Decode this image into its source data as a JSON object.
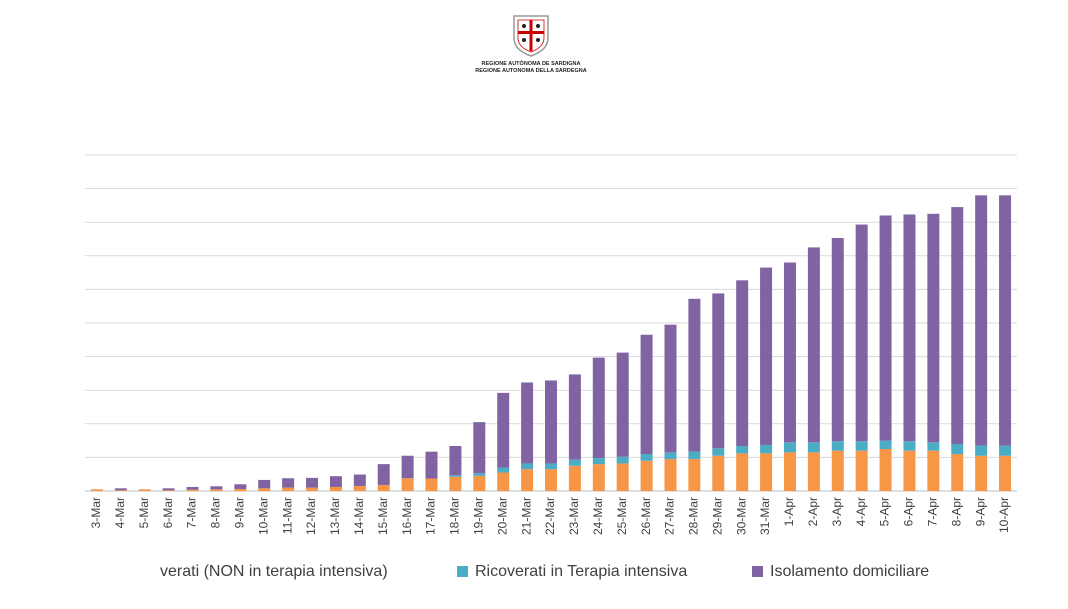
{
  "header": {
    "line1": "REGIONE AUTÒNOMA DE SARDIGNA",
    "line2": "REGIONE AUTONOMA DELLA SARDEGNA"
  },
  "chart_data": {
    "type": "stacked_bar",
    "categories": [
      "3-Mar",
      "4-Mar",
      "5-Mar",
      "6-Mar",
      "7-Mar",
      "8-Mar",
      "9-Mar",
      "10-Mar",
      "11-Mar",
      "12-Mar",
      "13-Mar",
      "14-Mar",
      "15-Mar",
      "16-Mar",
      "17-Mar",
      "18-Mar",
      "19-Mar",
      "20-Mar",
      "21-Mar",
      "22-Mar",
      "23-Mar",
      "24-Mar",
      "25-Mar",
      "26-Mar",
      "27-Mar",
      "28-Mar",
      "29-Mar",
      "30-Mar",
      "31-Mar",
      "1-Apr",
      "2-Apr",
      "3-Apr",
      "4-Apr",
      "5-Apr",
      "6-Apr",
      "7-Apr",
      "8-Apr",
      "9-Apr",
      "10-Apr"
    ],
    "series": [
      {
        "name": "verati (NON in terapia intensiva)",
        "color": "#f79646",
        "values": [
          5,
          2,
          5,
          2,
          4,
          5,
          6,
          8,
          10,
          10,
          12,
          15,
          18,
          38,
          37,
          42,
          45,
          55,
          65,
          65,
          75,
          80,
          82,
          90,
          95,
          95,
          105,
          112,
          112,
          115,
          115,
          120,
          120,
          125,
          120,
          120,
          110,
          105,
          105
        ]
      },
      {
        "name": "Ricoverati in Terapia intensiva",
        "color": "#4bacc6",
        "values": [
          0,
          0,
          0,
          0,
          0,
          0,
          0,
          0,
          0,
          0,
          0,
          0,
          0,
          0,
          0,
          5,
          8,
          15,
          17,
          17,
          18,
          18,
          20,
          20,
          20,
          22,
          22,
          22,
          25,
          30,
          30,
          28,
          28,
          25,
          28,
          25,
          30,
          30,
          30
        ]
      },
      {
        "name": "Isolamento domiciliare",
        "color": "#8064a2",
        "values": [
          0,
          6,
          0,
          6,
          8,
          9,
          14,
          25,
          28,
          29,
          32,
          34,
          62,
          67,
          80,
          87,
          152,
          222,
          241,
          247,
          254,
          299,
          310,
          355,
          380,
          455,
          461,
          493,
          528,
          535,
          580,
          605,
          645,
          670,
          675,
          680,
          705,
          745,
          745
        ]
      }
    ],
    "ylim": [
      0,
      1000
    ],
    "yticks": [
      0,
      100,
      200,
      300,
      400,
      500,
      600,
      700,
      800,
      900,
      1000
    ],
    "ytick_labels": false,
    "grid": true,
    "legend": "bottom"
  }
}
